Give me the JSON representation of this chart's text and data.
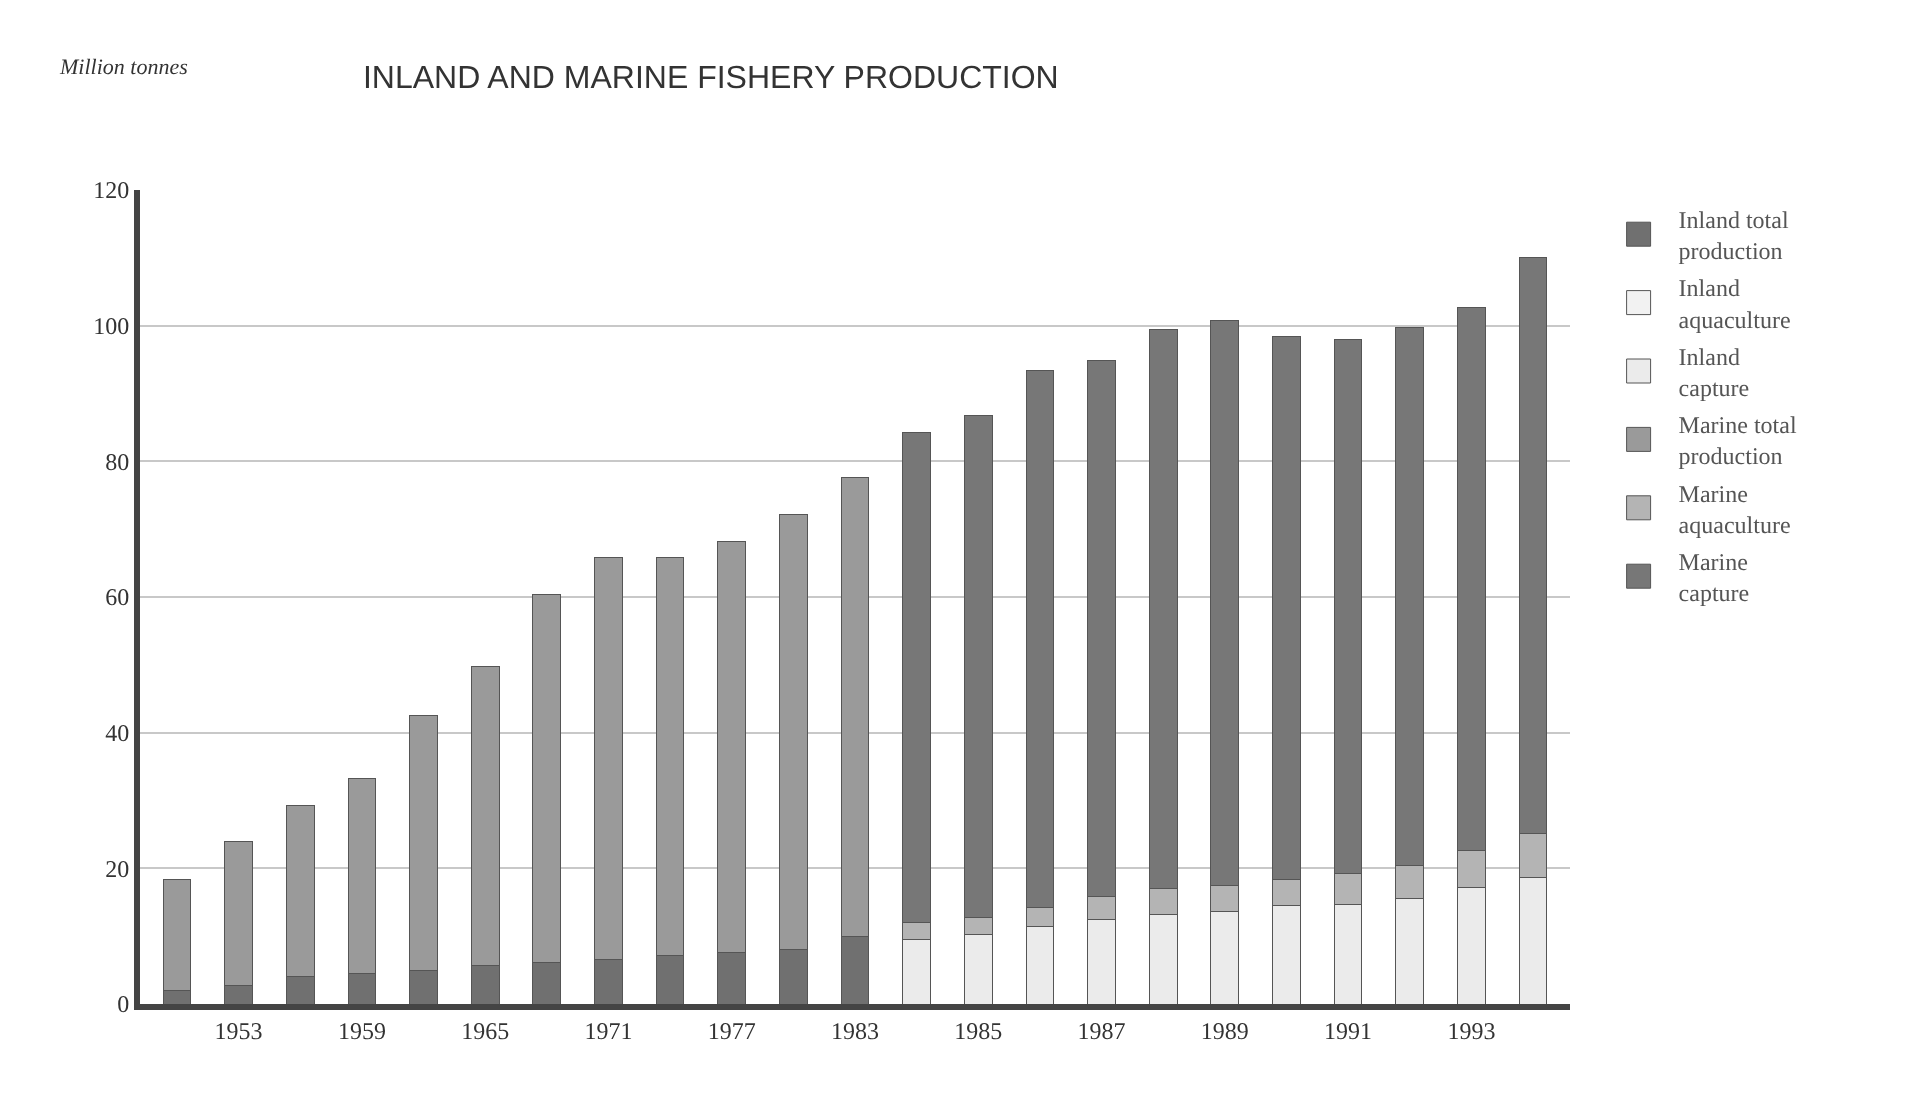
{
  "chart_data": {
    "type": "bar",
    "stacked": true,
    "title": "INLAND AND MARINE FISHERY PRODUCTION",
    "ylabel": "Million tonnes",
    "categories": [
      null,
      "1953",
      null,
      "1959",
      null,
      "1965",
      null,
      "1971",
      null,
      "1977",
      null,
      "1983",
      null,
      "1985",
      null,
      "1987",
      null,
      "1989",
      null,
      "1991",
      null,
      "1993",
      null
    ],
    "series": [
      {
        "name": "Inland total production",
        "color": "#707070",
        "values": [
          2,
          2.8,
          4,
          4.5,
          5,
          5.7,
          6.1,
          6.6,
          7.2,
          7.6,
          8.1,
          9.9,
          null,
          null,
          null,
          null,
          null,
          null,
          null,
          null,
          null,
          null,
          null
        ]
      },
      {
        "name": "Inland aquaculture",
        "color": "#f2f2f2",
        "values": [
          null,
          null,
          null,
          null,
          null,
          null,
          null,
          null,
          null,
          null,
          null,
          null,
          null,
          null,
          null,
          null,
          null,
          null,
          null,
          null,
          null,
          null,
          null
        ]
      },
      {
        "name": "Inland capture",
        "color": "#ebebeb",
        "values": [
          null,
          null,
          null,
          null,
          null,
          null,
          null,
          null,
          null,
          null,
          null,
          null,
          9.5,
          10.3,
          11.5,
          12.5,
          13.2,
          13.7,
          14.5,
          14.7,
          15.5,
          17.2,
          18.6
        ]
      },
      {
        "name": "Marine total production",
        "color": "#9a9a9a",
        "values": [
          16.4,
          21.2,
          25.3,
          28.7,
          37.6,
          44.1,
          54.3,
          59.2,
          58.6,
          60.6,
          64,
          67.7,
          null,
          null,
          null,
          null,
          null,
          null,
          null,
          null,
          null,
          null,
          null
        ]
      },
      {
        "name": "Marine aquaculture",
        "color": "#b4b4b4",
        "values": [
          null,
          null,
          null,
          null,
          null,
          null,
          null,
          null,
          null,
          null,
          null,
          null,
          2.5,
          2.4,
          2.8,
          3.3,
          3.8,
          3.7,
          3.9,
          4.5,
          4.9,
          5.5,
          6.5
        ]
      },
      {
        "name": "Marine capture",
        "color": "#777777",
        "values": [
          null,
          null,
          null,
          null,
          null,
          null,
          null,
          null,
          null,
          null,
          null,
          null,
          72.2,
          74,
          79.1,
          79.1,
          82.4,
          83.3,
          80,
          78.7,
          79.3,
          80,
          84.9
        ]
      }
    ],
    "ylim": [
      0,
      120
    ],
    "yticks": [
      0,
      20,
      40,
      60,
      80,
      100,
      120
    ],
    "grid": "y",
    "legend": "right"
  }
}
